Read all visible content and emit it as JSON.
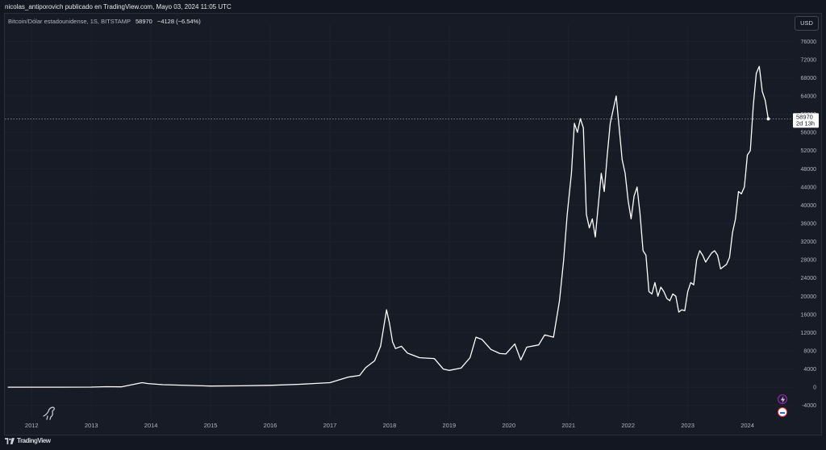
{
  "header": {
    "published": "nicolas_antiporovich publicado en TradingView.com, Mayo 03, 2024 11:05 UTC"
  },
  "legend": {
    "symbol": "Bitcoin/Dólar estadounidense, 1S, BITSTAMP",
    "price": "58970",
    "change": "−4128 (−6.54%)"
  },
  "toolbar": {
    "currency_label": "USD"
  },
  "price_label": {
    "value": "58970",
    "countdown": "2d 13h"
  },
  "footer": {
    "brand": "TradingView"
  },
  "colors": {
    "background": "#131722",
    "line": "#ffffff",
    "grid": "#1e222d",
    "axis_text": "#b2b5be"
  },
  "icons": [
    "lightning-icon",
    "flag-icon",
    "dino-icon",
    "tradingview-logo-icon"
  ],
  "chart_data": {
    "type": "line",
    "title": "",
    "xlabel": "",
    "ylabel": "",
    "x_ticks": [
      "2012",
      "2013",
      "2014",
      "2015",
      "2016",
      "2017",
      "2018",
      "2019",
      "2020",
      "2021",
      "2022",
      "2023",
      "2024"
    ],
    "y_ticks": [
      "-4000",
      "0",
      "4000",
      "8000",
      "12000",
      "16000",
      "20000",
      "24000",
      "28000",
      "32000",
      "36000",
      "40000",
      "44000",
      "48000",
      "52000",
      "56000",
      "60000",
      "64000",
      "68000",
      "72000",
      "76000"
    ],
    "xlim": [
      2011.55,
      2024.75
    ],
    "ylim": [
      -6000,
      78000
    ],
    "last_price": 58970,
    "series": [
      {
        "x": [
          2011.6,
          2012.0,
          2012.5,
          2013.0,
          2013.25,
          2013.5,
          2013.85,
          2013.95,
          2014.2,
          2014.5,
          2015.0,
          2015.5,
          2016.0,
          2016.5,
          2017.0,
          2017.3,
          2017.5,
          2017.6,
          2017.75,
          2017.85,
          2017.95,
          2018.0,
          2018.05,
          2018.1,
          2018.2,
          2018.3,
          2018.4,
          2018.5,
          2018.6,
          2018.75,
          2018.9,
          2019.0,
          2019.2,
          2019.35,
          2019.45,
          2019.55,
          2019.7,
          2019.85,
          2019.95,
          2020.1,
          2020.2,
          2020.3,
          2020.5,
          2020.6,
          2020.75,
          2020.85,
          2020.92,
          2020.98,
          2021.05,
          2021.1,
          2021.15,
          2021.2,
          2021.25,
          2021.3,
          2021.35,
          2021.4,
          2021.45,
          2021.5,
          2021.55,
          2021.6,
          2021.65,
          2021.7,
          2021.75,
          2021.8,
          2021.85,
          2021.9,
          2021.95,
          2022.0,
          2022.05,
          2022.1,
          2022.15,
          2022.2,
          2022.25,
          2022.3,
          2022.35,
          2022.4,
          2022.45,
          2022.5,
          2022.55,
          2022.6,
          2022.65,
          2022.7,
          2022.75,
          2022.8,
          2022.85,
          2022.9,
          2022.95,
          2023.0,
          2023.05,
          2023.1,
          2023.15,
          2023.2,
          2023.25,
          2023.3,
          2023.35,
          2023.4,
          2023.45,
          2023.5,
          2023.55,
          2023.6,
          2023.65,
          2023.7,
          2023.75,
          2023.8,
          2023.85,
          2023.9,
          2023.95,
          2024.0,
          2024.05,
          2024.1,
          2024.15,
          2024.2,
          2024.25,
          2024.3,
          2024.35
        ],
        "y": [
          5,
          6,
          10,
          20,
          120,
          80,
          1000,
          800,
          550,
          450,
          250,
          300,
          420,
          650,
          1000,
          2200,
          2600,
          4300,
          5800,
          9000,
          17000,
          14000,
          10000,
          8500,
          9000,
          7500,
          7000,
          6500,
          6400,
          6300,
          4000,
          3700,
          4200,
          6500,
          11000,
          10500,
          8300,
          7400,
          7300,
          9500,
          6000,
          8800,
          9300,
          11500,
          11000,
          19000,
          28000,
          38000,
          47000,
          58000,
          56000,
          59000,
          57000,
          38000,
          35000,
          37000,
          33000,
          40000,
          47000,
          43000,
          51000,
          58000,
          61000,
          64000,
          57000,
          50000,
          47000,
          41000,
          37000,
          42000,
          44000,
          38000,
          30000,
          29000,
          21000,
          20500,
          23000,
          20000,
          22000,
          21000,
          19500,
          19000,
          20500,
          20000,
          16500,
          17000,
          16800,
          21000,
          23000,
          22500,
          28000,
          30000,
          29000,
          27500,
          28500,
          29500,
          30000,
          29000,
          26000,
          26500,
          27000,
          28500,
          34000,
          37000,
          43000,
          42500,
          44000,
          51000,
          52000,
          62000,
          69000,
          70500,
          65000,
          63000,
          58970
        ]
      }
    ]
  }
}
